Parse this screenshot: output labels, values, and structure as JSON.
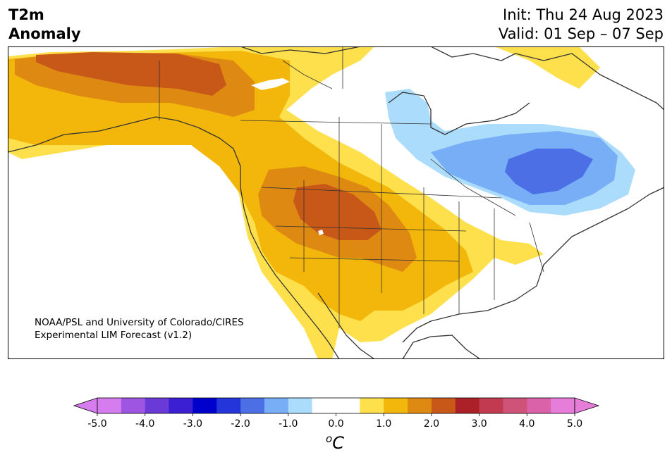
{
  "header": {
    "title_line1": "T2m",
    "title_line2": "Anomaly",
    "init": "Init: Thu 24 Aug 2023",
    "valid": "Valid: 01 Sep – 07 Sep"
  },
  "credit": {
    "line1": "NOAA/PSL and University of Colorado/CIRES",
    "line2": "Experimental LIM Forecast (v1.2)"
  },
  "colorbar": {
    "unit_base": "C",
    "unit_sup": "o",
    "ticks": [
      "-5.0",
      "-4.0",
      "-3.0",
      "-2.0",
      "-1.0",
      "0.0",
      "1.0",
      "2.0",
      "3.0",
      "4.0",
      "5.0"
    ],
    "colors": [
      "#d57cee",
      "#9d55e2",
      "#6a3ad9",
      "#3b1fd3",
      "#0000cc",
      "#2436d9",
      "#4c6fe6",
      "#78aef5",
      "#acdcfc",
      "#ffffff",
      "#ffffff",
      "#fde04c",
      "#f2b70a",
      "#de8a12",
      "#c85817",
      "#ac2127",
      "#c13a50",
      "#cf5278",
      "#da62a8",
      "#e67dd9"
    ],
    "under_color": "#d57cee",
    "over_color": "#e67dd9"
  },
  "map": {
    "region": "North America",
    "field_colors": {
      "warm1": "#fde04c",
      "warm2": "#f2b70a",
      "warm3": "#de8a12",
      "warm4": "#c85817",
      "cool1": "#acdcfc",
      "cool2": "#78aef5",
      "cool3": "#4c6fe6"
    }
  }
}
